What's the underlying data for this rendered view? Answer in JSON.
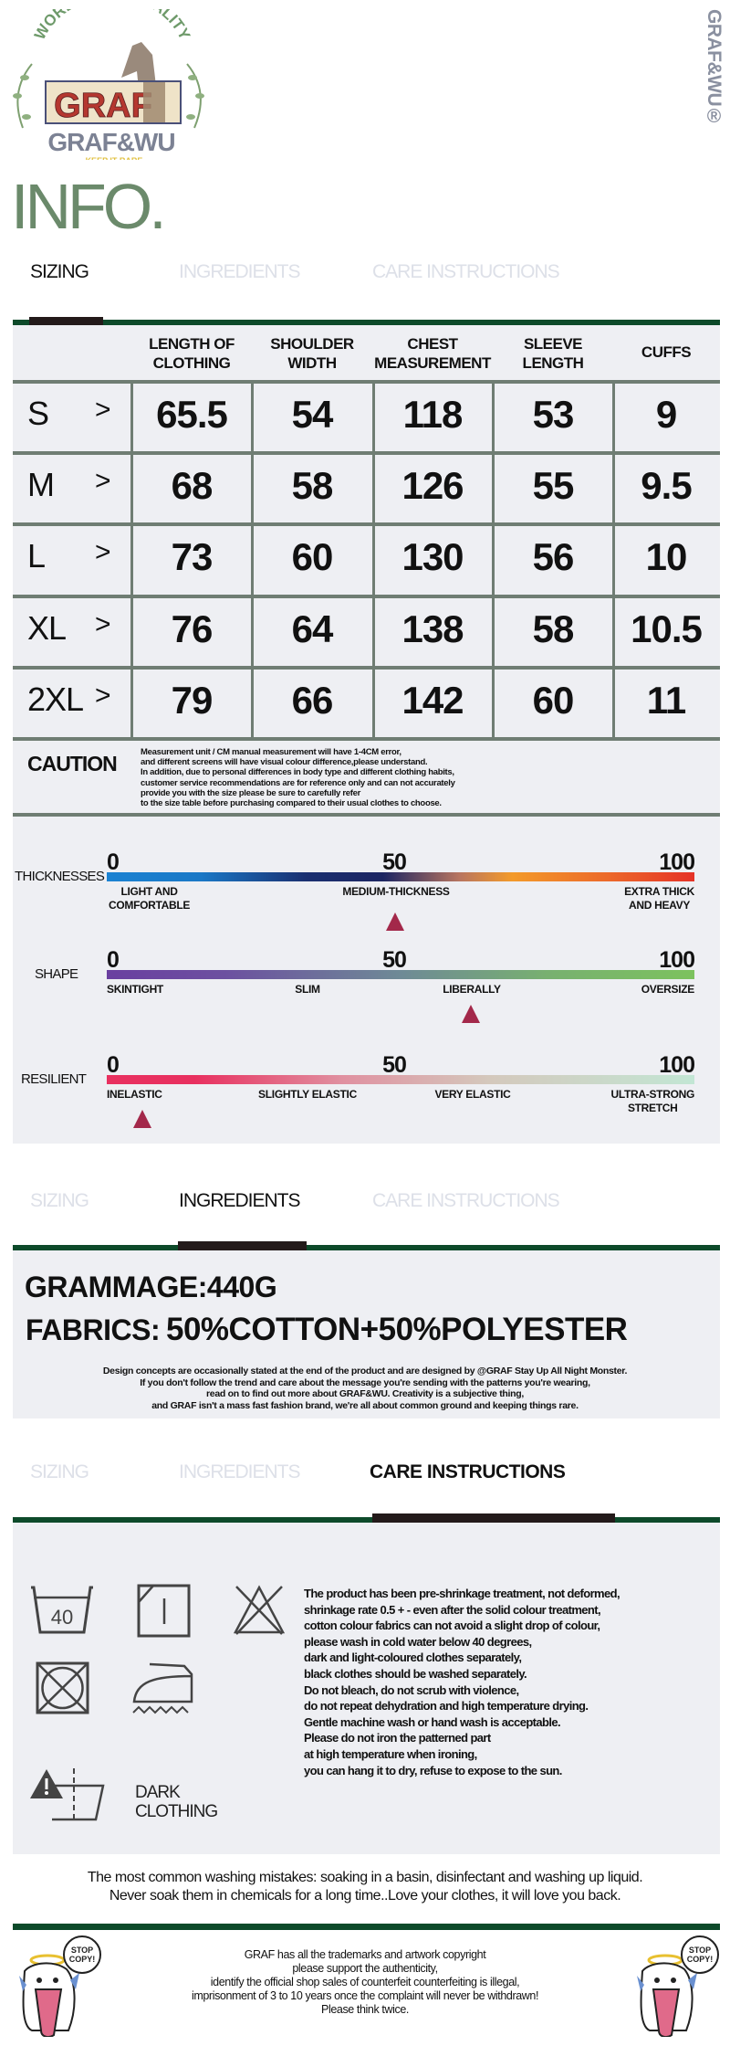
{
  "brand": {
    "logo_arc_text": "WORLDWIDE QUALITY",
    "logo_box_text": "GRAF",
    "logo_name": "GRAF&WU",
    "logo_tagline": "KEEP IT RARE",
    "vertical_mark": "GRAF&WU®"
  },
  "page_title": "INFO.",
  "tabs": [
    "SIZING",
    "INGREDIENTS",
    "CARE INSTRUCTIONS"
  ],
  "sizing": {
    "headers": [
      "LENGTH OF\nCLOTHING",
      "SHOULDER\nWIDTH",
      "CHEST\nMEASUREMENT",
      "SLEEVE\nLENGTH",
      "CUFFS"
    ],
    "rows": [
      {
        "size": "S",
        "values": [
          "65.5",
          "54",
          "118",
          "53",
          "9"
        ]
      },
      {
        "size": "M",
        "values": [
          "68",
          "58",
          "126",
          "55",
          "9.5"
        ]
      },
      {
        "size": "L",
        "values": [
          "73",
          "60",
          "130",
          "56",
          "10"
        ]
      },
      {
        "size": "XL",
        "values": [
          "76",
          "64",
          "138",
          "58",
          "10.5"
        ]
      },
      {
        "size": "2XL",
        "values": [
          "79",
          "66",
          "142",
          "60",
          "11"
        ]
      }
    ],
    "arrow": ">",
    "caution_title": "CAUTION",
    "caution_text": "Measurement unit / CM manual measurement will have 1-4CM error,\nand different screens will have visual colour difference,please understand.\nIn addition, due to personal differences in body type and different clothing habits,\ncustomer service recommendations are for reference only and can not accurately\nprovide you with the size please be sure to carefully refer\nto the size table before purchasing compared to their usual clothes to choose."
  },
  "scales": [
    {
      "name": "THICKNESSES",
      "ticks": [
        "0",
        "50",
        "100"
      ],
      "labels": [
        "LIGHT AND\nCOMFORTABLE",
        "MEDIUM-THICKNESS",
        "EXTRA THICK\nAND HEAVY"
      ],
      "value": 49
    },
    {
      "name": "SHAPE",
      "ticks": [
        "0",
        "50",
        "100"
      ],
      "labels": [
        "SKINTIGHT",
        "SLIM",
        "LIBERALLY",
        "OVERSIZE"
      ],
      "value": 62
    },
    {
      "name": "RESILIENT",
      "ticks": [
        "0",
        "50",
        "100"
      ],
      "labels": [
        "INELASTIC",
        "SLIGHTLY ELASTIC",
        "VERY ELASTIC",
        "ULTRA-STRONG\nSTRETCH"
      ],
      "value": 6
    }
  ],
  "ingredients": {
    "grammage": "GRAMMAGE:440G",
    "fabrics_label": "FABRICS:",
    "fabrics_value": "50%COTTON+50%POLYESTER",
    "note": "Design concepts are occasionally stated at the end of the product and are designed by @GRAF Stay Up All Night Monster.\nIf you don't follow the trend and care about the message you're sending with the patterns you're wearing,\nread on to find out more about GRAF&WU. Creativity is a subjective thing,\nand GRAF isn't a mass fast fashion brand, we're all about common ground and keeping things rare."
  },
  "care": {
    "wash_temp": "40",
    "dark_clothing": "DARK\nCLOTHING",
    "text": "The product has been pre-shrinkage treatment, not deformed,\nshrinkage rate 0.5 + - even after the solid colour treatment,\ncotton colour fabrics can not avoid a slight drop of colour,\nplease wash in cold water below 40 degrees,\ndark and light-coloured clothes separately,\nblack clothes should be washed separately.\nDo not bleach, do not scrub with violence,\ndo not repeat dehydration and high temperature drying.\nGentle machine wash or hand wash is acceptable.\nPlease do not iron the patterned part\nat high temperature when ironing,\nyou can hang it to dry, refuse to expose to the sun.",
    "mistakes": "The most common washing mistakes: soaking in a basin, disinfectant and washing up liquid.\nNever soak them in chemicals for a long time..Love your clothes, it will love you back."
  },
  "footer": {
    "sticker_text": "STOP\nCOPY!",
    "text": "GRAF has all the trademarks and artwork copyright\nplease support the authenticity,\nidentify the official shop sales of counterfeit counterfeiting is illegal,\nimprisonment of 3 to 10 years once the complaint will never be withdrawn!\nPlease think twice."
  },
  "colors": {
    "accent_green": "#0d4a2a",
    "panel": "#eeeff3",
    "marker": "#a3284a",
    "title_green": "#6b8a6b"
  }
}
